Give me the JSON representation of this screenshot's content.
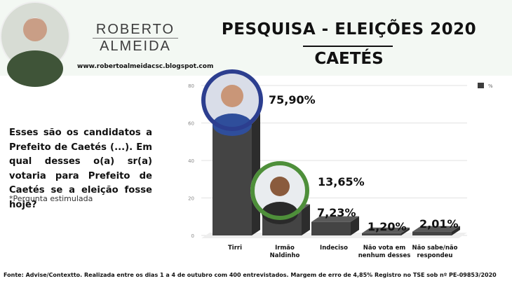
{
  "header": {
    "brand_line1": "ROBERTO",
    "brand_line2": "ALMEIDA",
    "blog_url": "www.robertoalmeidacsc.blogspot.com",
    "title_line1": "PESQUISA - ELEIÇÕES 2020",
    "title_line2": "CAETÉS"
  },
  "question": {
    "text": "Esses são os candidatos a Prefeito de Caetés (...). Em qual desses o(a) sr(a) votaria para Prefeito de Caetés se a eleição fosse hoje?",
    "note": "*Pergunta estimulada"
  },
  "footer": "Fonte: Advise/Contextto. Realizada entre os dias 1 a 4 de outubro com 400 entrevistados. Margem de erro de 4,85% Registro no TSE sob nº PE-09853/2020",
  "chart_data": {
    "type": "bar",
    "categories": [
      [
        "Tirri"
      ],
      [
        "Irmão",
        "Naldinho"
      ],
      [
        "Indeciso"
      ],
      [
        "Não vota em",
        "nenhum desses"
      ],
      [
        "Não sabe/não",
        "respondeu"
      ]
    ],
    "values": [
      75.9,
      13.65,
      7.23,
      1.2,
      2.01
    ],
    "value_labels": [
      "75,90%",
      "13,65%",
      "7,23%",
      "1,20%",
      "2,01%"
    ],
    "yticks": [
      "0",
      "20",
      "40",
      "60",
      "80"
    ],
    "ylim": [
      0,
      80
    ],
    "legend": [
      {
        "name": "%",
        "color": "#3d3d3d"
      }
    ],
    "legend_position": "top-right",
    "grid": true,
    "colors": {
      "bar": "#444444",
      "ring_1": "#2c3e8f",
      "ring_2": "#4e8f3a"
    }
  }
}
